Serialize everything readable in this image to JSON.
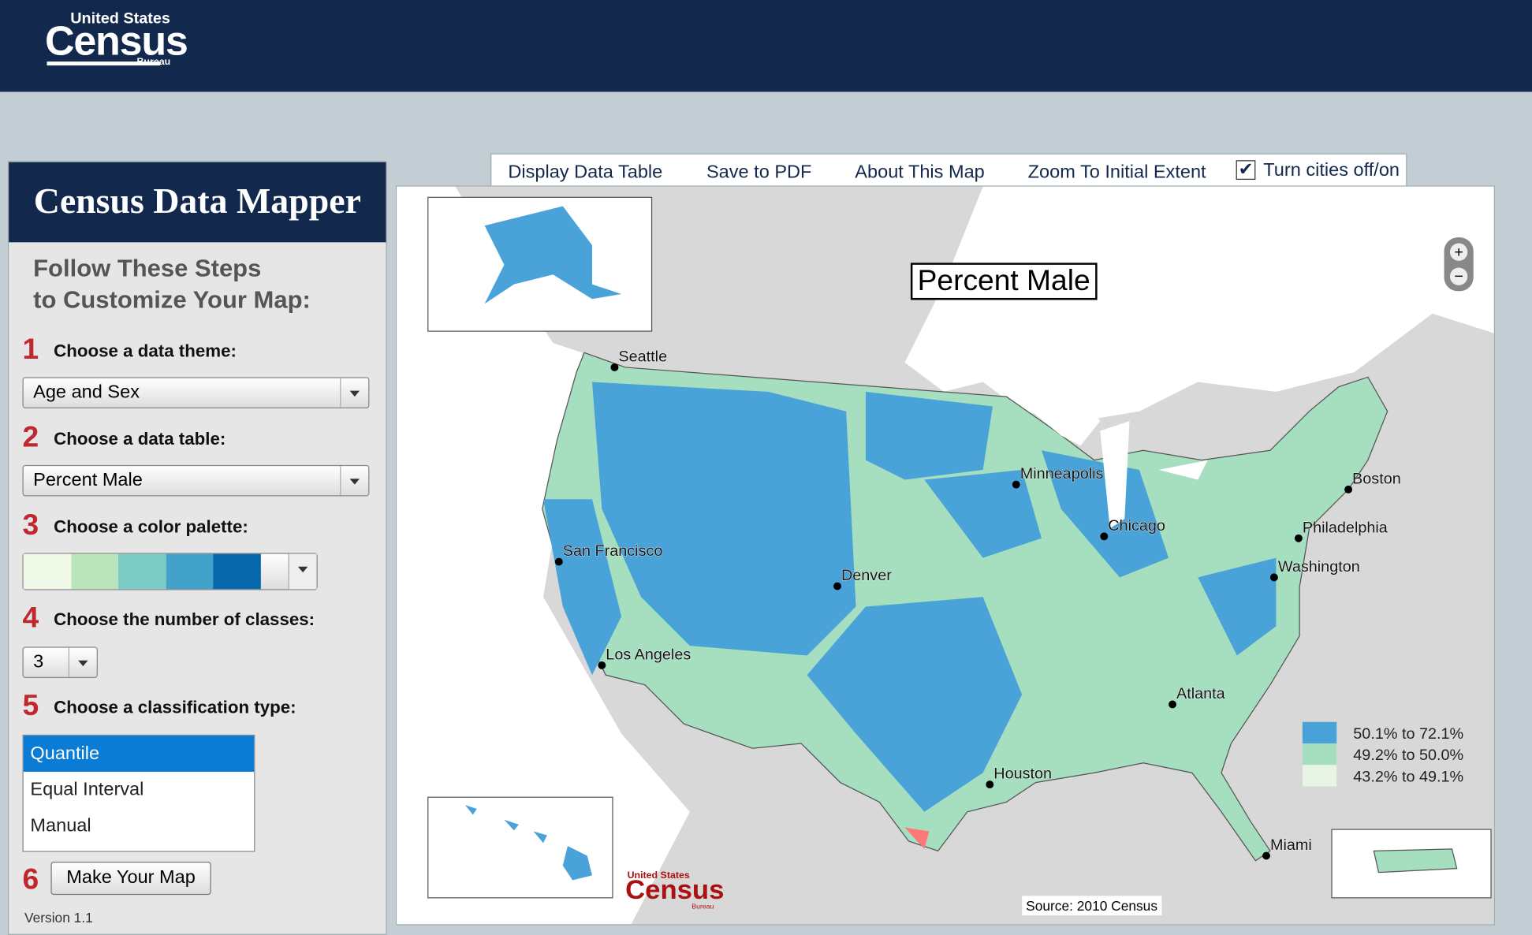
{
  "header": {
    "logo_top": "United States",
    "logo_main": "Census",
    "logo_bottom": "Bureau"
  },
  "sidebar": {
    "title": "Census Data Mapper",
    "intro": [
      "Follow These Steps",
      "to Customize Your Map:"
    ],
    "steps": [
      {
        "number": 1,
        "label": "Choose a data theme:"
      },
      {
        "number": 2,
        "label": "Choose a data table:"
      },
      {
        "number": 3,
        "label": "Choose a color palette:"
      },
      {
        "number": 4,
        "label": "Choose the number of classes:"
      },
      {
        "number": 5,
        "label": "Choose a classification type:"
      },
      {
        "number": 6
      }
    ],
    "theme_select": "Age and Sex",
    "table_select": "Percent Male",
    "palette": [
      "#f0f9e8",
      "#bae4bc",
      "#7bccc4",
      "#43a2ca",
      "#0868ac"
    ],
    "classes_select": 3,
    "classification_options": [
      "Quantile",
      "Equal Interval",
      "Manual"
    ],
    "button": "Make Your Map",
    "version": "Version 1.1"
  },
  "toolbar": {
    "links": [
      "Display Data Table",
      "Save to PDF",
      "About This Map",
      "Zoom To Initial Extent"
    ],
    "checkbox_label": "Turn cities off/on"
  },
  "map": {
    "title": "Percent Male",
    "cities": [
      "Seattle",
      "Minneapolis",
      "Boston",
      "Chicago",
      "Philadelphia",
      "Washington",
      "San Francisco",
      "Denver",
      "Los Angeles",
      "Atlanta",
      "Houston",
      "Miami"
    ],
    "legend": [
      {
        "label": "50.1% to 72.1%",
        "color": "#4aa3d8"
      },
      {
        "label": "49.2% to 50.0%",
        "color": "#a6dfc0"
      },
      {
        "label": "43.2% to 49.1%",
        "color": "#e8f5e4"
      }
    ],
    "source": "Source:  2010 Census",
    "logo_top": "United States",
    "logo_main": "Census",
    "logo_bottom": "Bureau"
  }
}
